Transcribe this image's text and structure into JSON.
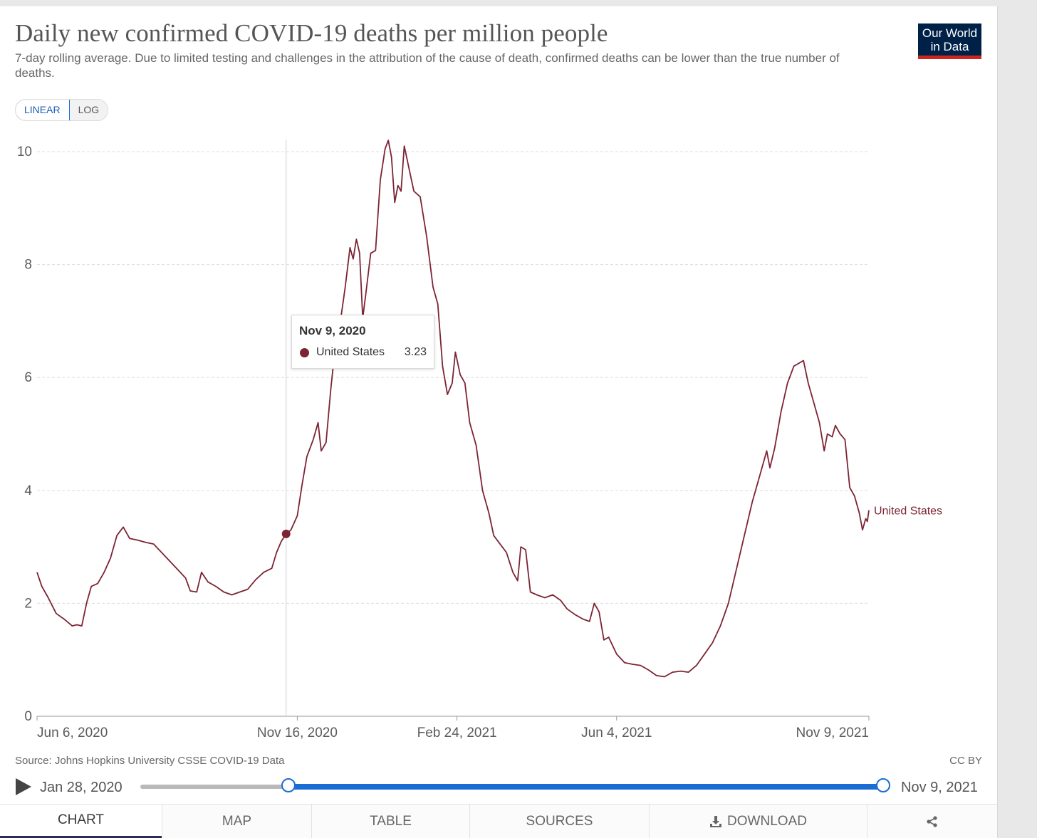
{
  "header": {
    "title": "Daily new confirmed COVID-19 deaths per million people",
    "subtitle": "7-day rolling average. Due to limited testing and challenges in the attribution of the cause of death, confirmed deaths can be lower than the true number of deaths.",
    "logo_line1": "Our World",
    "logo_line2": "in Data"
  },
  "scale_toggle": {
    "linear_label": "LINEAR",
    "log_label": "LOG",
    "selected": "LINEAR"
  },
  "tooltip": {
    "date": "Nov 9, 2020",
    "series": "United States",
    "value": "3.23"
  },
  "footer": {
    "source": "Source: Johns Hopkins University CSSE COVID-19 Data",
    "license": "CC BY"
  },
  "timeline": {
    "start_label": "Jan 28, 2020",
    "end_label": "Nov 9, 2021",
    "selection_start_fraction": 0.2,
    "selection_end_fraction": 1.0
  },
  "tabs": {
    "chart": "CHART",
    "map": "MAP",
    "table": "TABLE",
    "sources": "SOURCES",
    "download": "DOWNLOAD"
  },
  "colors": {
    "series": "#7c2433",
    "accent": "#1a6dd4",
    "grid": "#dddddd"
  },
  "icons": {
    "play": "play-icon",
    "download": "download-icon",
    "share": "share-icon"
  },
  "chart_data": {
    "type": "line",
    "title": "Daily new confirmed COVID-19 deaths per million people",
    "xlabel": "",
    "ylabel": "",
    "ylim": [
      0,
      10
    ],
    "y_ticks": [
      0,
      2,
      4,
      6,
      8,
      10
    ],
    "y_tick_labels": [
      "0",
      "2",
      "4",
      "6",
      "8",
      "10"
    ],
    "x_domain": [
      "2020-06-06",
      "2021-11-09"
    ],
    "x_ticks": [
      {
        "date": "2020-06-06",
        "label": "Jun 6, 2020"
      },
      {
        "date": "2020-11-16",
        "label": "Nov 16, 2020"
      },
      {
        "date": "2021-02-24",
        "label": "Feb 24, 2021"
      },
      {
        "date": "2021-06-04",
        "label": "Jun 4, 2021"
      },
      {
        "date": "2021-11-09",
        "label": "Nov 9, 2021"
      }
    ],
    "highlight": {
      "date": "2020-11-09",
      "value": 3.23
    },
    "series": [
      {
        "name": "United States",
        "points": [
          [
            "2020-06-06",
            2.55
          ],
          [
            "2020-06-09",
            2.3
          ],
          [
            "2020-06-13",
            2.1
          ],
          [
            "2020-06-18",
            1.82
          ],
          [
            "2020-06-23",
            1.72
          ],
          [
            "2020-06-28",
            1.6
          ],
          [
            "2020-07-01",
            1.62
          ],
          [
            "2020-07-04",
            1.6
          ],
          [
            "2020-07-07",
            2.0
          ],
          [
            "2020-07-10",
            2.3
          ],
          [
            "2020-07-14",
            2.35
          ],
          [
            "2020-07-18",
            2.55
          ],
          [
            "2020-07-22",
            2.8
          ],
          [
            "2020-07-26",
            3.2
          ],
          [
            "2020-07-30",
            3.35
          ],
          [
            "2020-08-03",
            3.15
          ],
          [
            "2020-08-08",
            3.12
          ],
          [
            "2020-08-13",
            3.08
          ],
          [
            "2020-08-18",
            3.05
          ],
          [
            "2020-08-23",
            2.9
          ],
          [
            "2020-08-28",
            2.75
          ],
          [
            "2020-09-02",
            2.6
          ],
          [
            "2020-09-07",
            2.45
          ],
          [
            "2020-09-10",
            2.22
          ],
          [
            "2020-09-14",
            2.2
          ],
          [
            "2020-09-17",
            2.55
          ],
          [
            "2020-09-21",
            2.38
          ],
          [
            "2020-09-26",
            2.3
          ],
          [
            "2020-10-01",
            2.2
          ],
          [
            "2020-10-06",
            2.15
          ],
          [
            "2020-10-11",
            2.2
          ],
          [
            "2020-10-16",
            2.25
          ],
          [
            "2020-10-21",
            2.42
          ],
          [
            "2020-10-26",
            2.55
          ],
          [
            "2020-10-31",
            2.62
          ],
          [
            "2020-11-03",
            2.9
          ],
          [
            "2020-11-06",
            3.1
          ],
          [
            "2020-11-09",
            3.23
          ],
          [
            "2020-11-12",
            3.3
          ],
          [
            "2020-11-16",
            3.55
          ],
          [
            "2020-11-19",
            4.1
          ],
          [
            "2020-11-22",
            4.6
          ],
          [
            "2020-11-26",
            4.9
          ],
          [
            "2020-11-29",
            5.2
          ],
          [
            "2020-12-01",
            4.7
          ],
          [
            "2020-12-04",
            4.85
          ],
          [
            "2020-12-07",
            5.8
          ],
          [
            "2020-12-10",
            6.6
          ],
          [
            "2020-12-13",
            7.0
          ],
          [
            "2020-12-16",
            7.6
          ],
          [
            "2020-12-19",
            8.3
          ],
          [
            "2020-12-21",
            8.1
          ],
          [
            "2020-12-23",
            8.45
          ],
          [
            "2020-12-25",
            8.2
          ],
          [
            "2020-12-27",
            7.05
          ],
          [
            "2020-12-29",
            7.5
          ],
          [
            "2021-01-01",
            8.2
          ],
          [
            "2021-01-04",
            8.25
          ],
          [
            "2021-01-07",
            9.5
          ],
          [
            "2021-01-10",
            10.05
          ],
          [
            "2021-01-12",
            10.2
          ],
          [
            "2021-01-14",
            9.9
          ],
          [
            "2021-01-16",
            9.1
          ],
          [
            "2021-01-18",
            9.4
          ],
          [
            "2021-01-20",
            9.3
          ],
          [
            "2021-01-22",
            10.1
          ],
          [
            "2021-01-25",
            9.7
          ],
          [
            "2021-01-28",
            9.3
          ],
          [
            "2021-02-01",
            9.2
          ],
          [
            "2021-02-05",
            8.5
          ],
          [
            "2021-02-09",
            7.6
          ],
          [
            "2021-02-12",
            7.3
          ],
          [
            "2021-02-15",
            6.2
          ],
          [
            "2021-02-18",
            5.7
          ],
          [
            "2021-02-21",
            5.9
          ],
          [
            "2021-02-23",
            6.45
          ],
          [
            "2021-02-26",
            6.05
          ],
          [
            "2021-03-01",
            5.9
          ],
          [
            "2021-03-04",
            5.2
          ],
          [
            "2021-03-08",
            4.8
          ],
          [
            "2021-03-12",
            4.0
          ],
          [
            "2021-03-16",
            3.6
          ],
          [
            "2021-03-19",
            3.2
          ],
          [
            "2021-03-23",
            3.05
          ],
          [
            "2021-03-27",
            2.9
          ],
          [
            "2021-03-31",
            2.55
          ],
          [
            "2021-04-03",
            2.4
          ],
          [
            "2021-04-05",
            3.0
          ],
          [
            "2021-04-08",
            2.95
          ],
          [
            "2021-04-11",
            2.2
          ],
          [
            "2021-04-15",
            2.15
          ],
          [
            "2021-04-20",
            2.1
          ],
          [
            "2021-04-25",
            2.15
          ],
          [
            "2021-04-30",
            2.05
          ],
          [
            "2021-05-04",
            1.9
          ],
          [
            "2021-05-09",
            1.8
          ],
          [
            "2021-05-14",
            1.72
          ],
          [
            "2021-05-18",
            1.68
          ],
          [
            "2021-05-21",
            2.0
          ],
          [
            "2021-05-24",
            1.85
          ],
          [
            "2021-05-27",
            1.35
          ],
          [
            "2021-05-30",
            1.4
          ],
          [
            "2021-06-04",
            1.1
          ],
          [
            "2021-06-09",
            0.95
          ],
          [
            "2021-06-14",
            0.92
          ],
          [
            "2021-06-19",
            0.9
          ],
          [
            "2021-06-24",
            0.82
          ],
          [
            "2021-06-29",
            0.72
          ],
          [
            "2021-07-04",
            0.7
          ],
          [
            "2021-07-09",
            0.78
          ],
          [
            "2021-07-14",
            0.8
          ],
          [
            "2021-07-19",
            0.78
          ],
          [
            "2021-07-24",
            0.9
          ],
          [
            "2021-07-29",
            1.1
          ],
          [
            "2021-08-03",
            1.3
          ],
          [
            "2021-08-08",
            1.6
          ],
          [
            "2021-08-13",
            2.0
          ],
          [
            "2021-08-18",
            2.6
          ],
          [
            "2021-08-23",
            3.2
          ],
          [
            "2021-08-28",
            3.8
          ],
          [
            "2021-09-02",
            4.3
          ],
          [
            "2021-09-06",
            4.7
          ],
          [
            "2021-09-08",
            4.4
          ],
          [
            "2021-09-11",
            4.75
          ],
          [
            "2021-09-15",
            5.4
          ],
          [
            "2021-09-19",
            5.9
          ],
          [
            "2021-09-23",
            6.2
          ],
          [
            "2021-09-26",
            6.25
          ],
          [
            "2021-09-29",
            6.3
          ],
          [
            "2021-10-02",
            5.9
          ],
          [
            "2021-10-06",
            5.5
          ],
          [
            "2021-10-09",
            5.2
          ],
          [
            "2021-10-12",
            4.7
          ],
          [
            "2021-10-14",
            5.0
          ],
          [
            "2021-10-17",
            4.95
          ],
          [
            "2021-10-19",
            5.15
          ],
          [
            "2021-10-22",
            5.0
          ],
          [
            "2021-10-25",
            4.9
          ],
          [
            "2021-10-28",
            4.05
          ],
          [
            "2021-10-31",
            3.9
          ],
          [
            "2021-11-03",
            3.6
          ],
          [
            "2021-11-05",
            3.3
          ],
          [
            "2021-11-07",
            3.5
          ],
          [
            "2021-11-08",
            3.45
          ],
          [
            "2021-11-09",
            3.65
          ]
        ]
      }
    ]
  }
}
